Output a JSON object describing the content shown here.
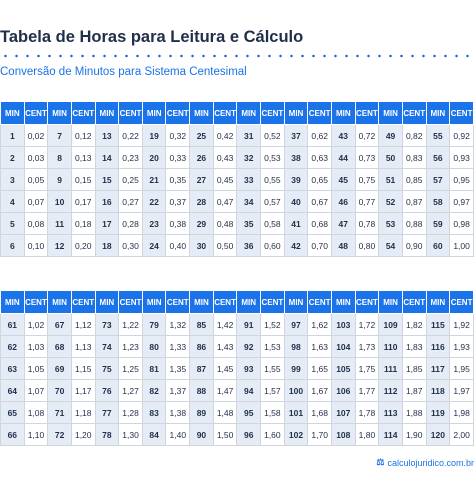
{
  "title": "Tabela de Horas para Leitura e Cálculo",
  "subtitle": "Conversão de Minutos para Sistema Centesimal",
  "footer": {
    "icon": "scale-icon",
    "text": "calculojuridico.com.br"
  },
  "colors": {
    "header": "#1a73e8",
    "min_cell": "#e6ecf5",
    "text": "#1f2f4a"
  },
  "table1": {
    "headers": [
      "MIN",
      "CENT",
      "MIN",
      "CENT",
      "MIN",
      "CENT",
      "MIN",
      "CENT",
      "MIN",
      "CENT",
      "MIN",
      "CENT",
      "MIN",
      "CENT",
      "MIN",
      "CENT",
      "MIN",
      "CENT",
      "MIN",
      "CENT"
    ],
    "rows": [
      [
        "1",
        "0,02",
        "7",
        "0,12",
        "13",
        "0,22",
        "19",
        "0,32",
        "25",
        "0,42",
        "31",
        "0,52",
        "37",
        "0,62",
        "43",
        "0,72",
        "49",
        "0,82",
        "55",
        "0,92"
      ],
      [
        "2",
        "0,03",
        "8",
        "0,13",
        "14",
        "0,23",
        "20",
        "0,33",
        "26",
        "0,43",
        "32",
        "0,53",
        "38",
        "0,63",
        "44",
        "0,73",
        "50",
        "0,83",
        "56",
        "0,93"
      ],
      [
        "3",
        "0,05",
        "9",
        "0,15",
        "15",
        "0,25",
        "21",
        "0,35",
        "27",
        "0,45",
        "33",
        "0,55",
        "39",
        "0,65",
        "45",
        "0,75",
        "51",
        "0,85",
        "57",
        "0,95"
      ],
      [
        "4",
        "0,07",
        "10",
        "0,17",
        "16",
        "0,27",
        "22",
        "0,37",
        "28",
        "0,47",
        "34",
        "0,57",
        "40",
        "0,67",
        "46",
        "0,77",
        "52",
        "0,87",
        "58",
        "0,97"
      ],
      [
        "5",
        "0,08",
        "11",
        "0,18",
        "17",
        "0,28",
        "23",
        "0,38",
        "29",
        "0,48",
        "35",
        "0,58",
        "41",
        "0,68",
        "47",
        "0,78",
        "53",
        "0,88",
        "59",
        "0,98"
      ],
      [
        "6",
        "0,10",
        "12",
        "0,20",
        "18",
        "0,30",
        "24",
        "0,40",
        "30",
        "0,50",
        "36",
        "0,60",
        "42",
        "0,70",
        "48",
        "0,80",
        "54",
        "0,90",
        "60",
        "1,00"
      ]
    ]
  },
  "table2": {
    "headers": [
      "MIN",
      "CENT",
      "MIN",
      "CENT",
      "MIN",
      "CENT",
      "MIN",
      "CENT",
      "MIN",
      "CENT",
      "MIN",
      "CENT",
      "MIN",
      "CENT",
      "MIN",
      "CENT",
      "MIN",
      "CENT",
      "MIN",
      "CENT"
    ],
    "rows": [
      [
        "61",
        "1,02",
        "67",
        "1,12",
        "73",
        "1,22",
        "79",
        "1,32",
        "85",
        "1,42",
        "91",
        "1,52",
        "97",
        "1,62",
        "103",
        "1,72",
        "109",
        "1,82",
        "115",
        "1,92"
      ],
      [
        "62",
        "1,03",
        "68",
        "1,13",
        "74",
        "1,23",
        "80",
        "1,33",
        "86",
        "1,43",
        "92",
        "1,53",
        "98",
        "1,63",
        "104",
        "1,73",
        "110",
        "1,83",
        "116",
        "1,93"
      ],
      [
        "63",
        "1,05",
        "69",
        "1,15",
        "75",
        "1,25",
        "81",
        "1,35",
        "87",
        "1,45",
        "93",
        "1,55",
        "99",
        "1,65",
        "105",
        "1,75",
        "111",
        "1,85",
        "117",
        "1,95"
      ],
      [
        "64",
        "1,07",
        "70",
        "1,17",
        "76",
        "1,27",
        "82",
        "1,37",
        "88",
        "1,47",
        "94",
        "1,57",
        "100",
        "1,67",
        "106",
        "1,77",
        "112",
        "1,87",
        "118",
        "1,97"
      ],
      [
        "65",
        "1,08",
        "71",
        "1,18",
        "77",
        "1,28",
        "83",
        "1,38",
        "89",
        "1,48",
        "95",
        "1,58",
        "101",
        "1,68",
        "107",
        "1,78",
        "113",
        "1,88",
        "119",
        "1,98"
      ],
      [
        "66",
        "1,10",
        "72",
        "1,20",
        "78",
        "1,30",
        "84",
        "1,40",
        "90",
        "1,50",
        "96",
        "1,60",
        "102",
        "1,70",
        "108",
        "1,80",
        "114",
        "1,90",
        "120",
        "2,00"
      ]
    ]
  }
}
